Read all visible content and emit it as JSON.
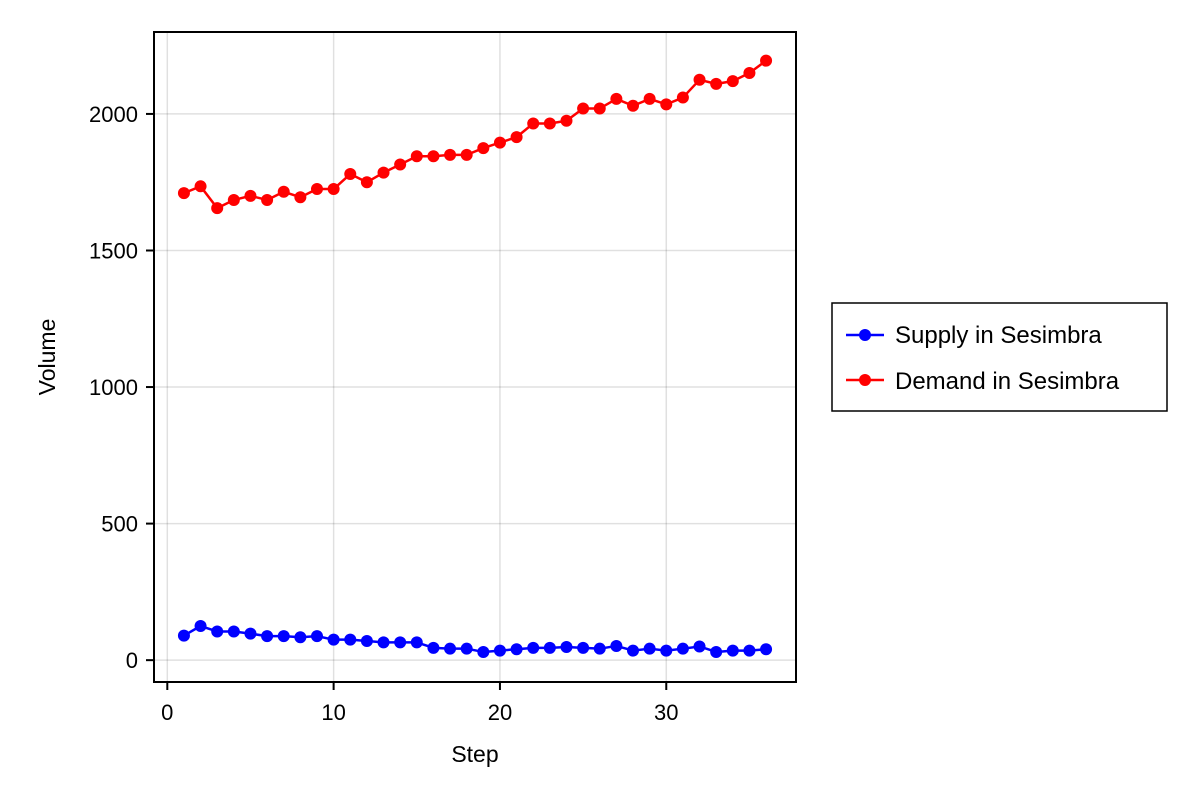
{
  "chart_data": {
    "type": "line",
    "title": "",
    "xlabel": "Step",
    "ylabel": "Volume",
    "xlim": [
      -0.8,
      37.8
    ],
    "ylim": [
      -80,
      2300
    ],
    "x_ticks": [
      0,
      10,
      20,
      30
    ],
    "y_ticks": [
      0,
      500,
      1000,
      1500,
      2000
    ],
    "grid": true,
    "legend_position": "right",
    "x": [
      1,
      2,
      3,
      4,
      5,
      6,
      7,
      8,
      9,
      10,
      11,
      12,
      13,
      14,
      15,
      16,
      17,
      18,
      19,
      20,
      21,
      22,
      23,
      24,
      25,
      26,
      27,
      28,
      29,
      30,
      31,
      32,
      33,
      34,
      35,
      36
    ],
    "series": [
      {
        "name": "Supply in Sesimbra",
        "color": "#0000ff",
        "values": [
          90,
          125,
          105,
          105,
          97,
          88,
          88,
          84,
          88,
          75,
          75,
          70,
          65,
          65,
          65,
          45,
          42,
          42,
          30,
          35,
          40,
          45,
          45,
          48,
          45,
          42,
          52,
          35,
          42,
          35,
          42,
          50,
          30,
          35,
          35,
          40
        ]
      },
      {
        "name": "Demand in Sesimbra",
        "color": "#ff0000",
        "values": [
          1710,
          1735,
          1655,
          1685,
          1700,
          1685,
          1715,
          1695,
          1725,
          1725,
          1780,
          1750,
          1785,
          1815,
          1845,
          1845,
          1850,
          1850,
          1875,
          1895,
          1915,
          1965,
          1965,
          1975,
          2020,
          2020,
          2055,
          2030,
          2055,
          2035,
          2060,
          2125,
          2110,
          2120,
          2150,
          2195
        ]
      }
    ]
  }
}
